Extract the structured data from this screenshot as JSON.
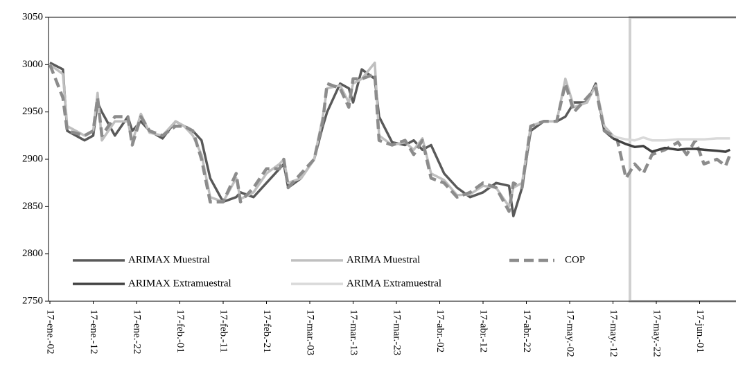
{
  "chart_data": {
    "type": "line",
    "x": [
      "2017-01-02",
      "2017-01-05",
      "2017-01-06",
      "2017-01-10",
      "2017-01-12",
      "2017-01-13",
      "2017-01-14",
      "2017-01-17",
      "2017-01-20",
      "2017-01-21",
      "2017-01-23",
      "2017-01-25",
      "2017-01-28",
      "2017-01-31",
      "2017-02-02",
      "2017-02-04",
      "2017-02-06",
      "2017-02-08",
      "2017-02-11",
      "2017-02-14",
      "2017-02-15",
      "2017-02-18",
      "2017-02-21",
      "2017-02-24",
      "2017-02-25",
      "2017-02-26",
      "2017-03-01",
      "2017-03-04",
      "2017-03-06",
      "2017-03-07",
      "2017-03-10",
      "2017-03-12",
      "2017-03-13",
      "2017-03-15",
      "2017-03-18",
      "2017-03-19",
      "2017-03-22",
      "2017-03-25",
      "2017-03-27",
      "2017-03-29",
      "2017-03-31",
      "2017-04-03",
      "2017-04-06",
      "2017-04-09",
      "2017-04-12",
      "2017-04-15",
      "2017-04-18",
      "2017-04-19",
      "2017-04-21",
      "2017-04-23",
      "2017-04-26",
      "2017-04-29",
      "2017-05-01",
      "2017-05-03",
      "2017-05-06",
      "2017-05-08",
      "2017-05-10",
      "2017-05-12",
      "2017-05-13",
      "2017-05-15",
      "2017-05-17",
      "2017-05-19",
      "2017-05-21",
      "2017-05-24",
      "2017-05-27",
      "2017-05-29",
      "2017-05-31",
      "2017-06-02",
      "2017-06-05",
      "2017-06-07",
      "2017-06-08"
    ],
    "series": [
      {
        "name": "ARIMAX Muestral",
        "color": "#595959",
        "dash": false,
        "values": [
          3002,
          2995,
          2930,
          2920,
          2925,
          2960,
          2950,
          2925,
          2945,
          2930,
          2940,
          2930,
          2922,
          2940,
          2935,
          2930,
          2920,
          2880,
          2855,
          2860,
          2865,
          2860,
          2875,
          2890,
          2895,
          2870,
          2880,
          2900,
          2935,
          2950,
          2980,
          2975,
          2960,
          2995,
          2985,
          2945,
          2918,
          2915,
          2920,
          2910,
          2915,
          2885,
          2870,
          2860,
          2865,
          2875,
          2872,
          2840,
          2870,
          2930,
          2940,
          2940,
          2945,
          2960,
          2960,
          2980,
          2930,
          2922,
          null,
          null,
          null,
          null,
          null,
          null,
          null,
          null,
          null,
          null,
          null,
          null,
          null
        ]
      },
      {
        "name": "ARIMA Muestral",
        "color": "#bfbfbf",
        "dash": false,
        "values": [
          3000,
          2990,
          2935,
          2925,
          2930,
          2970,
          2920,
          2940,
          2940,
          2918,
          2948,
          2928,
          2925,
          2940,
          2935,
          2925,
          2905,
          2860,
          2855,
          2880,
          2858,
          2865,
          2885,
          2895,
          2900,
          2875,
          2880,
          2900,
          2945,
          2975,
          2978,
          2960,
          2980,
          2985,
          3002,
          2925,
          2915,
          2918,
          2910,
          2922,
          2885,
          2878,
          2862,
          2863,
          2872,
          2870,
          2850,
          2870,
          2875,
          2935,
          2940,
          2940,
          2985,
          2955,
          2960,
          2978,
          2935,
          2925,
          null,
          null,
          null,
          null,
          null,
          null,
          null,
          null,
          null,
          null,
          null,
          null,
          null
        ]
      },
      {
        "name": "COP",
        "color": "#8c8c8c",
        "dash": true,
        "values": [
          3000,
          2965,
          2930,
          2925,
          2930,
          2965,
          2925,
          2945,
          2945,
          2915,
          2945,
          2930,
          2925,
          2935,
          2935,
          2930,
          2900,
          2855,
          2855,
          2885,
          2855,
          2870,
          2890,
          2890,
          2900,
          2870,
          2885,
          2900,
          2940,
          2980,
          2975,
          2955,
          2985,
          2985,
          2990,
          2920,
          2915,
          2920,
          2905,
          2920,
          2880,
          2875,
          2860,
          2865,
          2875,
          2870,
          2845,
          2875,
          2870,
          2935,
          2940,
          2940,
          2980,
          2950,
          2965,
          2975,
          2930,
          2925,
          2920,
          2880,
          2895,
          2885,
          2905,
          2910,
          2918,
          2905,
          2920,
          2895,
          2900,
          2893,
          2905
        ]
      },
      {
        "name": "ARIMAX Extramuestral",
        "color": "#404040",
        "dash": false,
        "values": [
          null,
          null,
          null,
          null,
          null,
          null,
          null,
          null,
          null,
          null,
          null,
          null,
          null,
          null,
          null,
          null,
          null,
          null,
          null,
          null,
          null,
          null,
          null,
          null,
          null,
          null,
          null,
          null,
          null,
          null,
          null,
          null,
          null,
          null,
          null,
          null,
          null,
          null,
          null,
          null,
          null,
          null,
          null,
          null,
          null,
          null,
          null,
          null,
          null,
          null,
          null,
          null,
          null,
          null,
          null,
          null,
          null,
          2922,
          2920,
          2916,
          2913,
          2914,
          2908,
          2912,
          2910,
          2911,
          2911,
          2910,
          2909,
          2908,
          2910
        ]
      },
      {
        "name": "ARIMA Extramuestral",
        "color": "#d9d9d9",
        "dash": false,
        "values": [
          null,
          null,
          null,
          null,
          null,
          null,
          null,
          null,
          null,
          null,
          null,
          null,
          null,
          null,
          null,
          null,
          null,
          null,
          null,
          null,
          null,
          null,
          null,
          null,
          null,
          null,
          null,
          null,
          null,
          null,
          null,
          null,
          null,
          null,
          null,
          null,
          null,
          null,
          null,
          null,
          null,
          null,
          null,
          null,
          null,
          null,
          null,
          null,
          null,
          null,
          null,
          null,
          null,
          null,
          null,
          null,
          null,
          2925,
          2923,
          2921,
          2920,
          2923,
          2920,
          2920,
          2921,
          2921,
          2921,
          2921,
          2922,
          2922,
          2922
        ]
      }
    ],
    "xlim": [
      "2017-01-02",
      "2017-06-09"
    ],
    "xticks": [
      {
        "value": "2017-01-02",
        "label": "17-ene.-02"
      },
      {
        "value": "2017-01-12",
        "label": "17-ene.-12"
      },
      {
        "value": "2017-01-22",
        "label": "17-ene.-22"
      },
      {
        "value": "2017-02-01",
        "label": "17-feb.-01"
      },
      {
        "value": "2017-02-11",
        "label": "17-feb.-11"
      },
      {
        "value": "2017-02-21",
        "label": "17-feb.-21"
      },
      {
        "value": "2017-03-03",
        "label": "17-mar.-03"
      },
      {
        "value": "2017-03-13",
        "label": "17-mar.-13"
      },
      {
        "value": "2017-03-23",
        "label": "17-mar.-23"
      },
      {
        "value": "2017-04-02",
        "label": "17-abr.-02"
      },
      {
        "value": "2017-04-12",
        "label": "17-abr.-12"
      },
      {
        "value": "2017-04-22",
        "label": "17-abr.-22"
      },
      {
        "value": "2017-05-02",
        "label": "17-may.-02"
      },
      {
        "value": "2017-05-12",
        "label": "17-may.-12"
      },
      {
        "value": "2017-05-22",
        "label": "17-may.-22"
      },
      {
        "value": "2017-06-01",
        "label": "17-jun.-01"
      }
    ],
    "ylim": [
      2750,
      3050
    ],
    "yticks": [
      2750,
      2800,
      2850,
      2900,
      2950,
      3000,
      3050
    ],
    "grid": false
  }
}
